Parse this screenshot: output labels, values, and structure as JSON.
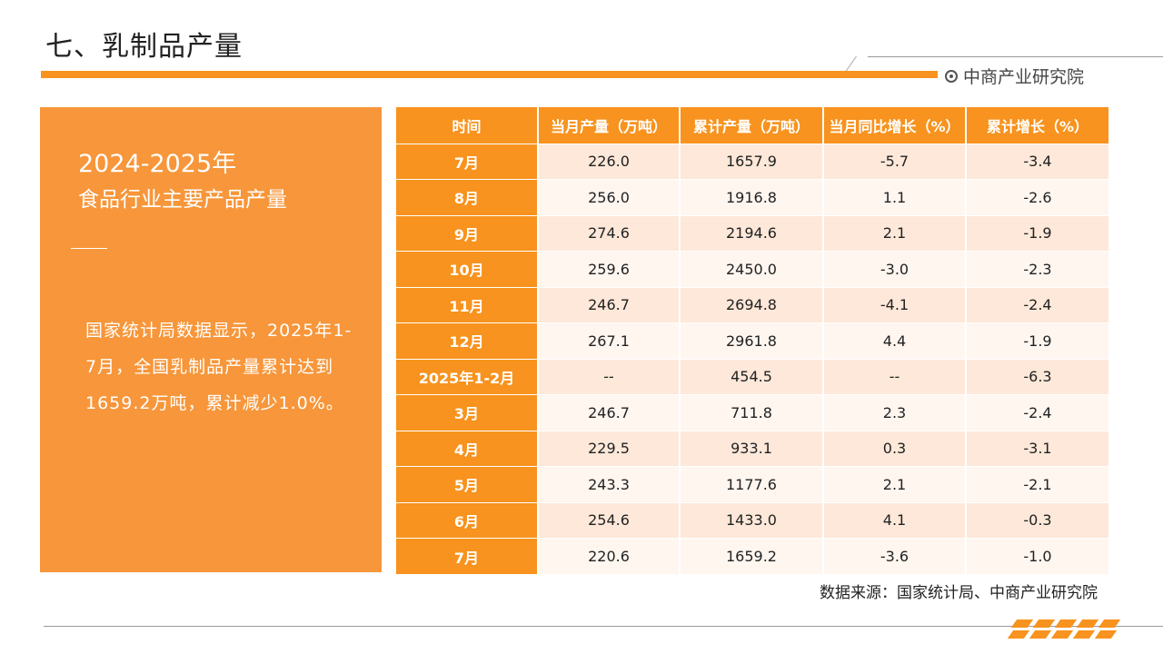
{
  "page": {
    "title": "七、乳制品产量"
  },
  "brand": {
    "name": "中商产业研究院",
    "icon": "target-icon",
    "accent": "#f7931e"
  },
  "left_panel": {
    "title1": "2024-2025年",
    "title2": "食品行业主要产品产量",
    "body": "国家统计局数据显示，2025年1-7月，全国乳制品产量累计达到1659.2万吨，累计减少1.0%。"
  },
  "table": {
    "headers": [
      "时间",
      "当月产量（万吨）",
      "累计产量（万吨）",
      "当月同比增长（%）",
      "累计增长（%）"
    ],
    "rows": [
      [
        "7月",
        "226.0",
        "1657.9",
        "-5.7",
        "-3.4"
      ],
      [
        "8月",
        "256.0",
        "1916.8",
        "1.1",
        "-2.6"
      ],
      [
        "9月",
        "274.6",
        "2194.6",
        "2.1",
        "-1.9"
      ],
      [
        "10月",
        "259.6",
        "2450.0",
        "-3.0",
        "-2.3"
      ],
      [
        "11月",
        "246.7",
        "2694.8",
        "-4.1",
        "-2.4"
      ],
      [
        "12月",
        "267.1",
        "2961.8",
        "4.4",
        "-1.9"
      ],
      [
        "2025年1-2月",
        "--",
        "454.5",
        "--",
        "-6.3"
      ],
      [
        "3月",
        "246.7",
        "711.8",
        "2.3",
        "-2.4"
      ],
      [
        "4月",
        "229.5",
        "933.1",
        "0.3",
        "-3.1"
      ],
      [
        "5月",
        "243.3",
        "1177.6",
        "2.1",
        "-2.1"
      ],
      [
        "6月",
        "254.6",
        "1433.0",
        "4.1",
        "-0.3"
      ],
      [
        "7月",
        "220.6",
        "1659.2",
        "-3.6",
        "-1.0"
      ]
    ]
  },
  "source": "数据来源：国家统计局、中商产业研究院"
}
